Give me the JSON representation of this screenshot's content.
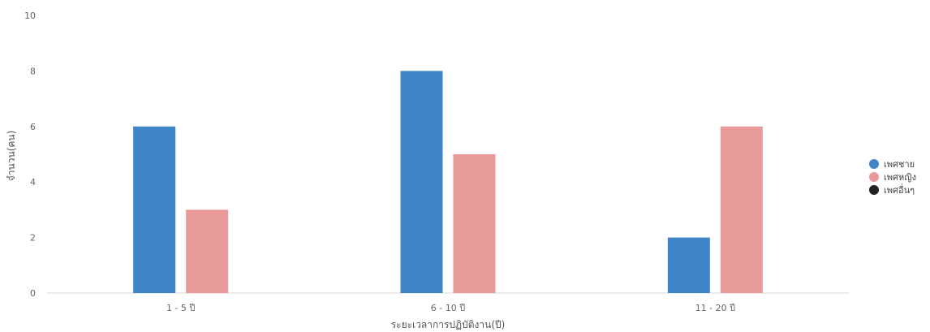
{
  "chart_data": {
    "type": "bar",
    "categories": [
      "1 - 5 ปี",
      "6 - 10 ปี",
      "11 - 20 ปี"
    ],
    "series": [
      {
        "name": "เพศชาย",
        "values": [
          6,
          8,
          2
        ],
        "color": "#3f86c8"
      },
      {
        "name": "เพศหญิง",
        "values": [
          3,
          5,
          6
        ],
        "color": "#e89a99"
      },
      {
        "name": "เพศอื่นๆ",
        "values": [
          0,
          0,
          0
        ],
        "color": "#222222"
      }
    ],
    "xlabel": "ระยะเวลาการปฏิบัติงาน(ปี)",
    "ylabel": "จำนวน(คน)",
    "ylim": [
      0,
      10
    ],
    "yticks": [
      0,
      2,
      4,
      6,
      8,
      10
    ],
    "grid": false,
    "legend_position": "right"
  }
}
